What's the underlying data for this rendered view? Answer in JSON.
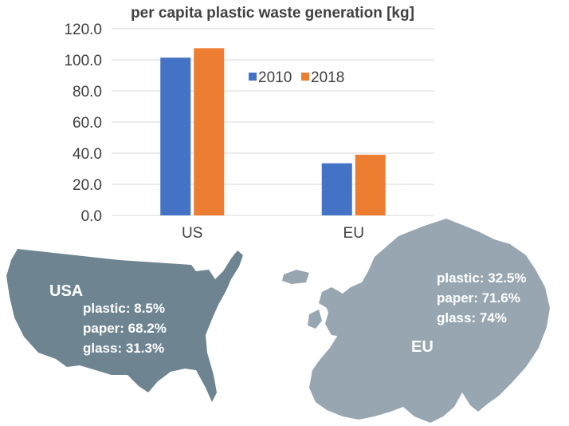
{
  "chart_data": {
    "type": "bar",
    "title": "per capita plastic waste generation [kg]",
    "categories": [
      "US",
      "EU"
    ],
    "series": [
      {
        "name": "2010",
        "values": [
          101.4,
          33.5
        ],
        "color": "#4472c4"
      },
      {
        "name": "2018",
        "values": [
          107.5,
          39.0
        ],
        "color": "#ed7d31"
      }
    ],
    "yticks": [
      "0.0",
      "20.0",
      "40.0",
      "60.0",
      "80.0",
      "100.0",
      "120.0"
    ],
    "ylim": [
      0,
      120
    ],
    "grid": true,
    "legend_position": "top-right"
  },
  "maps": {
    "usa": {
      "title": "USA",
      "stats": [
        "plastic: 8.5%",
        "paper: 68.2%",
        "glass: 31.3%"
      ],
      "color": "#6e8591"
    },
    "eu": {
      "title": "EU",
      "stats": [
        "plastic: 32.5%",
        "paper: 71.6%",
        "glass: 74%"
      ],
      "color": "#97a6b0"
    }
  }
}
